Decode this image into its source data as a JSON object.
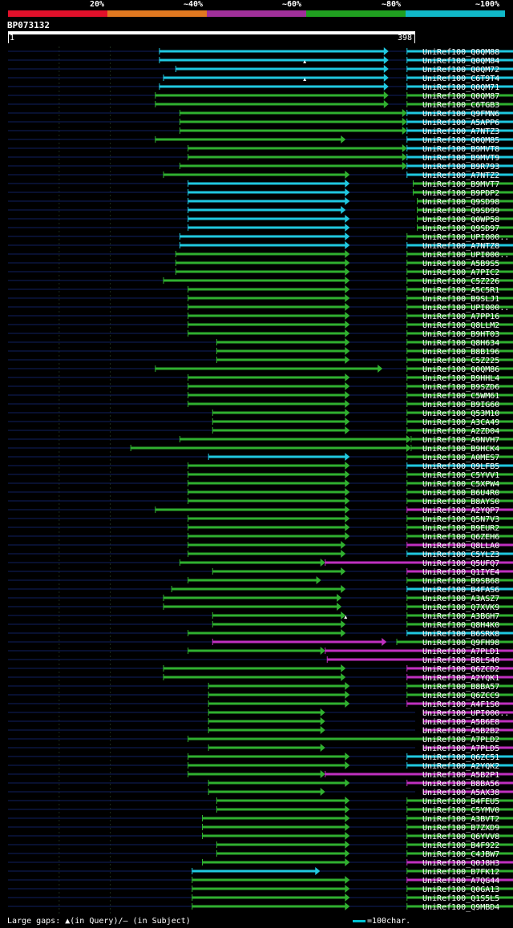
{
  "scale": {
    "labels": [
      "20%",
      "~40%",
      "~60%",
      "~80%",
      "~100%"
    ],
    "colors": [
      "#e0102a",
      "#e07820",
      "#a0309a",
      "#20a020",
      "#10b8c8"
    ]
  },
  "query": {
    "id": "BP073132",
    "start": "1",
    "end": "398",
    "length": 398
  },
  "colors": {
    "cyan": "#20c8e0",
    "green": "#30b030",
    "magenta": "#c030c0",
    "navy": "#102060",
    "guide": "#1e2e1e"
  },
  "hits": [
    {
      "id": "UniRef100_Q0QM88",
      "segs": [
        [
          148,
          372,
          "c"
        ],
        [
          390,
          640,
          "c"
        ]
      ]
    },
    {
      "id": "UniRef100_Q0QM84",
      "segs": [
        [
          148,
          372,
          "c"
        ],
        [
          390,
          640,
          "c"
        ]
      ],
      "qgap": 290
    },
    {
      "id": "UniRef100_Q0QM72",
      "segs": [
        [
          164,
          372,
          "c"
        ],
        [
          390,
          640,
          "c"
        ]
      ]
    },
    {
      "id": "UniRef100_C6T9T4",
      "segs": [
        [
          152,
          372,
          "c"
        ],
        [
          390,
          640,
          "c"
        ]
      ],
      "qgap": 290
    },
    {
      "id": "UniRef100_Q0QM71",
      "segs": [
        [
          148,
          372,
          "c"
        ],
        [
          390,
          640,
          "c"
        ]
      ]
    },
    {
      "id": "UniRef100_Q0QM87",
      "segs": [
        [
          144,
          372,
          "g"
        ],
        [
          390,
          620,
          "g"
        ]
      ]
    },
    {
      "id": "UniRef100_C6TGB3",
      "segs": [
        [
          144,
          372,
          "g"
        ],
        [
          390,
          620,
          "g"
        ]
      ]
    },
    {
      "id": "UniRef100_Q9FMN6",
      "segs": [
        [
          168,
          390,
          "g"
        ],
        [
          390,
          640,
          "c"
        ]
      ]
    },
    {
      "id": "UniRef100_A5APP6",
      "segs": [
        [
          168,
          390,
          "g"
        ],
        [
          390,
          640,
          "c"
        ]
      ]
    },
    {
      "id": "UniRef100_A7NTZ3",
      "segs": [
        [
          168,
          390,
          "g"
        ],
        [
          390,
          640,
          "c"
        ]
      ]
    },
    {
      "id": "UniRef100_Q0QM85",
      "segs": [
        [
          144,
          330,
          "g"
        ],
        [
          390,
          640,
          "c"
        ]
      ]
    },
    {
      "id": "UniRef100_B9MVT8",
      "segs": [
        [
          176,
          390,
          "g"
        ],
        [
          390,
          656,
          "c"
        ]
      ]
    },
    {
      "id": "UniRef100_B9MVT9",
      "segs": [
        [
          176,
          390,
          "g"
        ],
        [
          390,
          656,
          "c"
        ]
      ]
    },
    {
      "id": "UniRef100_B9R793",
      "segs": [
        [
          168,
          390,
          "g"
        ],
        [
          390,
          640,
          "c"
        ]
      ]
    },
    {
      "id": "UniRef100_A7NTZ2",
      "segs": [
        [
          152,
          334,
          "g"
        ],
        [
          390,
          640,
          "c"
        ]
      ]
    },
    {
      "id": "UniRef100_B9MVT7",
      "segs": [
        [
          176,
          334,
          "c"
        ],
        [
          396,
          656,
          "g"
        ]
      ]
    },
    {
      "id": "UniRef100_B9PDP2",
      "segs": [
        [
          176,
          334,
          "c"
        ],
        [
          396,
          656,
          "g"
        ]
      ]
    },
    {
      "id": "UniRef100_Q9SD98",
      "segs": [
        [
          176,
          334,
          "c"
        ],
        [
          400,
          620,
          "g"
        ]
      ]
    },
    {
      "id": "UniRef100_Q9SD99",
      "segs": [
        [
          176,
          330,
          "c"
        ],
        [
          400,
          640,
          "g"
        ]
      ]
    },
    {
      "id": "UniRef100_Q0WP58",
      "segs": [
        [
          176,
          334,
          "c"
        ],
        [
          400,
          640,
          "g"
        ]
      ]
    },
    {
      "id": "UniRef100_Q9SD97",
      "segs": [
        [
          176,
          334,
          "c"
        ],
        [
          400,
          640,
          "g"
        ]
      ]
    },
    {
      "id": "UniRef100_UPI000..",
      "segs": [
        [
          168,
          334,
          "c"
        ],
        [
          390,
          650,
          "g"
        ]
      ]
    },
    {
      "id": "UniRef100_A7NTZ8",
      "segs": [
        [
          168,
          334,
          "c"
        ],
        [
          390,
          560,
          "c"
        ]
      ]
    },
    {
      "id": "UniRef100_UPI000..",
      "segs": [
        [
          164,
          334,
          "g"
        ],
        [
          390,
          656,
          "g"
        ]
      ]
    },
    {
      "id": "UniRef100_A5B9S5",
      "segs": [
        [
          164,
          334,
          "g"
        ],
        [
          390,
          656,
          "g"
        ]
      ]
    },
    {
      "id": "UniRef100_A7PIC2",
      "segs": [
        [
          164,
          334,
          "g"
        ],
        [
          390,
          656,
          "g"
        ]
      ]
    },
    {
      "id": "UniRef100_C5Z226",
      "segs": [
        [
          152,
          334,
          "g"
        ],
        [
          390,
          650,
          "g"
        ]
      ]
    },
    {
      "id": "UniRef100_A5C5R1",
      "segs": [
        [
          176,
          334,
          "g"
        ],
        [
          390,
          656,
          "g"
        ]
      ]
    },
    {
      "id": "UniRef100_B9SLJ1",
      "segs": [
        [
          176,
          334,
          "g"
        ],
        [
          390,
          656,
          "g"
        ]
      ]
    },
    {
      "id": "UniRef100_UPI000..",
      "segs": [
        [
          176,
          334,
          "g"
        ],
        [
          390,
          656,
          "g"
        ]
      ]
    },
    {
      "id": "UniRef100_A7PP16",
      "segs": [
        [
          176,
          334,
          "g"
        ],
        [
          390,
          656,
          "g"
        ]
      ]
    },
    {
      "id": "UniRef100_Q8LLM2",
      "segs": [
        [
          176,
          334,
          "g"
        ],
        [
          390,
          630,
          "g"
        ]
      ]
    },
    {
      "id": "UniRef100_B9HT03",
      "segs": [
        [
          176,
          334,
          "g"
        ],
        [
          390,
          656,
          "g"
        ]
      ]
    },
    {
      "id": "UniRef100_Q8H634",
      "segs": [
        [
          204,
          334,
          "g"
        ],
        [
          390,
          640,
          "g"
        ]
      ]
    },
    {
      "id": "UniRef100_B8B196",
      "segs": [
        [
          204,
          334,
          "g"
        ],
        [
          390,
          640,
          "g"
        ]
      ]
    },
    {
      "id": "UniRef100_C5Z225",
      "segs": [
        [
          204,
          334,
          "g"
        ],
        [
          390,
          640,
          "g"
        ]
      ]
    },
    {
      "id": "UniRef100_Q0QM86",
      "segs": [
        [
          144,
          366,
          "g"
        ],
        [
          390,
          640,
          "g"
        ]
      ]
    },
    {
      "id": "UniRef100_B9HHL4",
      "segs": [
        [
          176,
          334,
          "g"
        ],
        [
          390,
          656,
          "g"
        ]
      ]
    },
    {
      "id": "UniRef100_B9SZD6",
      "segs": [
        [
          176,
          334,
          "g"
        ],
        [
          390,
          656,
          "g"
        ]
      ]
    },
    {
      "id": "UniRef100_C5WM61",
      "segs": [
        [
          176,
          334,
          "g"
        ],
        [
          390,
          620,
          "g"
        ]
      ]
    },
    {
      "id": "UniRef100_B9IG60",
      "segs": [
        [
          176,
          334,
          "g"
        ],
        [
          390,
          656,
          "g"
        ]
      ]
    },
    {
      "id": "UniRef100_Q53M10",
      "segs": [
        [
          200,
          334,
          "g"
        ],
        [
          390,
          640,
          "g"
        ]
      ]
    },
    {
      "id": "UniRef100_A3CA49",
      "segs": [
        [
          200,
          334,
          "g"
        ],
        [
          390,
          640,
          "g"
        ]
      ]
    },
    {
      "id": "UniRef100_A2ZD04",
      "segs": [
        [
          200,
          334,
          "g"
        ],
        [
          390,
          640,
          "g"
        ]
      ]
    },
    {
      "id": "UniRef100_A9NVH7",
      "segs": [
        [
          168,
          394,
          "g"
        ],
        [
          394,
          640,
          "g"
        ]
      ]
    },
    {
      "id": "UniRef100_B9HCK4",
      "segs": [
        [
          120,
          394,
          "g"
        ],
        [
          394,
          656,
          "g"
        ]
      ]
    },
    {
      "id": "UniRef100_A0MES7",
      "segs": [
        [
          196,
          334,
          "c"
        ],
        [
          390,
          640,
          "g"
        ]
      ]
    },
    {
      "id": "UniRef100_Q9LFB5",
      "segs": [
        [
          176,
          334,
          "g"
        ],
        [
          390,
          530,
          "c"
        ]
      ]
    },
    {
      "id": "UniRef100_C5YVV1",
      "segs": [
        [
          176,
          334,
          "g"
        ],
        [
          390,
          630,
          "g"
        ]
      ],
      "qgap": 590
    },
    {
      "id": "UniRef100_C5XPW4",
      "segs": [
        [
          176,
          334,
          "g"
        ],
        [
          390,
          530,
          "g"
        ]
      ]
    },
    {
      "id": "UniRef100_B6U4R0",
      "segs": [
        [
          176,
          334,
          "g"
        ],
        [
          390,
          530,
          "g"
        ]
      ]
    },
    {
      "id": "UniRef100_B8AYS0",
      "segs": [
        [
          176,
          334,
          "g"
        ],
        [
          390,
          640,
          "g"
        ]
      ],
      "qgap": 590
    },
    {
      "id": "UniRef100_A2YQP7",
      "segs": [
        [
          144,
          334,
          "g"
        ],
        [
          390,
          656,
          "m"
        ]
      ]
    },
    {
      "id": "UniRef100_Q5N7V3",
      "segs": [
        [
          176,
          334,
          "g"
        ],
        [
          390,
          530,
          "g"
        ]
      ]
    },
    {
      "id": "UniRef100_B9EUR2",
      "segs": [
        [
          176,
          334,
          "g"
        ],
        [
          390,
          530,
          "g"
        ]
      ]
    },
    {
      "id": "UniRef100_Q6ZEH6",
      "segs": [
        [
          176,
          334,
          "g"
        ],
        [
          390,
          620,
          "g"
        ]
      ],
      "qgap": 590
    },
    {
      "id": "UniRef100_Q8LLA0",
      "segs": [
        [
          176,
          330,
          "g"
        ],
        [
          390,
          620,
          "m"
        ]
      ],
      "qgap": 590
    },
    {
      "id": "UniRef100_C5YLZ3",
      "segs": [
        [
          176,
          330,
          "g"
        ],
        [
          390,
          530,
          "c"
        ]
      ]
    },
    {
      "id": "UniRef100_Q5UFQ7",
      "segs": [
        [
          168,
          310,
          "g"
        ],
        [
          310,
          656,
          "m"
        ]
      ]
    },
    {
      "id": "UniRef100_Q1IYE4",
      "segs": [
        [
          200,
          330,
          "g"
        ],
        [
          390,
          620,
          "m"
        ]
      ],
      "qgap": 590
    },
    {
      "id": "UniRef100_B9SB68",
      "segs": [
        [
          176,
          306,
          "g"
        ],
        [
          390,
          640,
          "g"
        ]
      ]
    },
    {
      "id": "UniRef100_B4FAS6",
      "segs": [
        [
          160,
          330,
          "g"
        ],
        [
          390,
          530,
          "c"
        ]
      ]
    },
    {
      "id": "UniRef100_A3ASZ7",
      "segs": [
        [
          152,
          326,
          "g"
        ],
        [
          390,
          620,
          "g"
        ]
      ]
    },
    {
      "id": "UniRef100_Q7XVK9",
      "segs": [
        [
          152,
          326,
          "g"
        ],
        [
          390,
          620,
          "g"
        ]
      ]
    },
    {
      "id": "UniRef100_A3BGH7",
      "segs": [
        [
          200,
          330,
          "g"
        ],
        [
          390,
          610,
          "g"
        ]
      ],
      "qgap": 330
    },
    {
      "id": "UniRef100_Q8H4K0",
      "segs": [
        [
          200,
          330,
          "g"
        ],
        [
          390,
          600,
          "g"
        ]
      ]
    },
    {
      "id": "UniRef100_B6SRK8",
      "segs": [
        [
          176,
          330,
          "g"
        ],
        [
          390,
          530,
          "c"
        ]
      ]
    },
    {
      "id": "UniRef100_Q9FH98",
      "segs": [
        [
          200,
          370,
          "m"
        ],
        [
          380,
          656,
          "g"
        ]
      ]
    },
    {
      "id": "UniRef100_A7PLD1",
      "segs": [
        [
          176,
          310,
          "g"
        ],
        [
          310,
          656,
          "m"
        ]
      ]
    },
    {
      "id": "UniRef100_B8LS40",
      "segs": [
        [
          312,
          656,
          "m"
        ]
      ]
    },
    {
      "id": "UniRef100_Q6ZCD2",
      "segs": [
        [
          152,
          330,
          "g"
        ],
        [
          390,
          656,
          "m"
        ]
      ]
    },
    {
      "id": "UniRef100_A2YQK1",
      "segs": [
        [
          152,
          330,
          "g"
        ],
        [
          390,
          656,
          "m"
        ]
      ]
    },
    {
      "id": "UniRef100_B8BA57",
      "segs": [
        [
          196,
          334,
          "g"
        ],
        [
          390,
          620,
          "g"
        ]
      ]
    },
    {
      "id": "UniRef100_Q6ZCC9",
      "segs": [
        [
          196,
          334,
          "g"
        ],
        [
          390,
          620,
          "g"
        ]
      ]
    },
    {
      "id": "UniRef100_A4F1S0",
      "segs": [
        [
          196,
          334,
          "g"
        ],
        [
          390,
          640,
          "m"
        ]
      ]
    },
    {
      "id": "UniRef100_UPI000..",
      "segs": [
        [
          196,
          310,
          "g"
        ],
        [
          406,
          656,
          "m"
        ]
      ]
    },
    {
      "id": "UniRef100_A5B6E8",
      "segs": [
        [
          196,
          310,
          "g"
        ],
        [
          406,
          640,
          "m"
        ]
      ]
    },
    {
      "id": "UniRef100_A5B2B2",
      "segs": [
        [
          196,
          310,
          "g"
        ],
        [
          406,
          640,
          "m"
        ]
      ]
    },
    {
      "id": "UniRef100_A7PLD2",
      "segs": [
        [
          176,
          650,
          "g"
        ]
      ]
    },
    {
      "id": "UniRef100_A7PLD5",
      "segs": [
        [
          196,
          310,
          "g"
        ],
        [
          406,
          640,
          "m"
        ]
      ]
    },
    {
      "id": "UniRef100_Q6ZC51",
      "segs": [
        [
          176,
          334,
          "g"
        ],
        [
          390,
          530,
          "c"
        ]
      ]
    },
    {
      "id": "UniRef100_A2YQK2",
      "segs": [
        [
          176,
          334,
          "g"
        ],
        [
          390,
          530,
          "c"
        ]
      ]
    },
    {
      "id": "UniRef100_A5B2P1",
      "segs": [
        [
          176,
          310,
          "g"
        ],
        [
          310,
          640,
          "m"
        ]
      ]
    },
    {
      "id": "UniRef100_B8BA56",
      "segs": [
        [
          196,
          334,
          "g"
        ],
        [
          390,
          640,
          "m"
        ]
      ]
    },
    {
      "id": "UniRef100_A5AX38",
      "segs": [
        [
          196,
          310,
          "g"
        ],
        [
          406,
          640,
          "m"
        ]
      ]
    },
    {
      "id": "UniRef100_B4FEU5",
      "segs": [
        [
          204,
          334,
          "g"
        ],
        [
          390,
          545,
          "g"
        ]
      ]
    },
    {
      "id": "UniRef100_C5YMV0",
      "segs": [
        [
          204,
          334,
          "g"
        ],
        [
          390,
          545,
          "g"
        ]
      ]
    },
    {
      "id": "UniRef100_A3BVT2",
      "segs": [
        [
          190,
          334,
          "g"
        ],
        [
          390,
          545,
          "g"
        ]
      ]
    },
    {
      "id": "UniRef100_B7ZXD9",
      "segs": [
        [
          190,
          334,
          "g"
        ],
        [
          390,
          545,
          "g"
        ]
      ]
    },
    {
      "id": "UniRef100_Q6YVV8",
      "segs": [
        [
          190,
          334,
          "g"
        ],
        [
          390,
          545,
          "g"
        ]
      ]
    },
    {
      "id": "UniRef100_B4F922",
      "segs": [
        [
          204,
          334,
          "g"
        ],
        [
          390,
          545,
          "g"
        ]
      ]
    },
    {
      "id": "UniRef100_C4JBW7",
      "segs": [
        [
          204,
          334,
          "g"
        ],
        [
          390,
          545,
          "g"
        ]
      ]
    },
    {
      "id": "UniRef100_Q0J8H3",
      "segs": [
        [
          190,
          334,
          "g"
        ],
        [
          390,
          640,
          "m"
        ]
      ]
    },
    {
      "id": "UniRef100_B7FK12",
      "segs": [
        [
          180,
          305,
          "c"
        ],
        [
          390,
          640,
          "g"
        ]
      ]
    },
    {
      "id": "UniRef100_A7QG44",
      "segs": [
        [
          180,
          334,
          "g"
        ],
        [
          390,
          620,
          "m"
        ]
      ]
    },
    {
      "id": "UniRef100_Q0GA13",
      "segs": [
        [
          180,
          334,
          "g"
        ],
        [
          390,
          620,
          "g"
        ]
      ]
    },
    {
      "id": "UniRef100_Q1S5L5",
      "segs": [
        [
          180,
          334,
          "g"
        ],
        [
          390,
          640,
          "g"
        ]
      ]
    },
    {
      "id": "UniRef100_Q9MBD4",
      "segs": [
        [
          180,
          334,
          "g"
        ],
        [
          390,
          640,
          "g"
        ]
      ]
    }
  ],
  "footer": {
    "gaps": "Large gaps: ▲(in Query)/– (in Subject)",
    "legend": "=100char."
  }
}
